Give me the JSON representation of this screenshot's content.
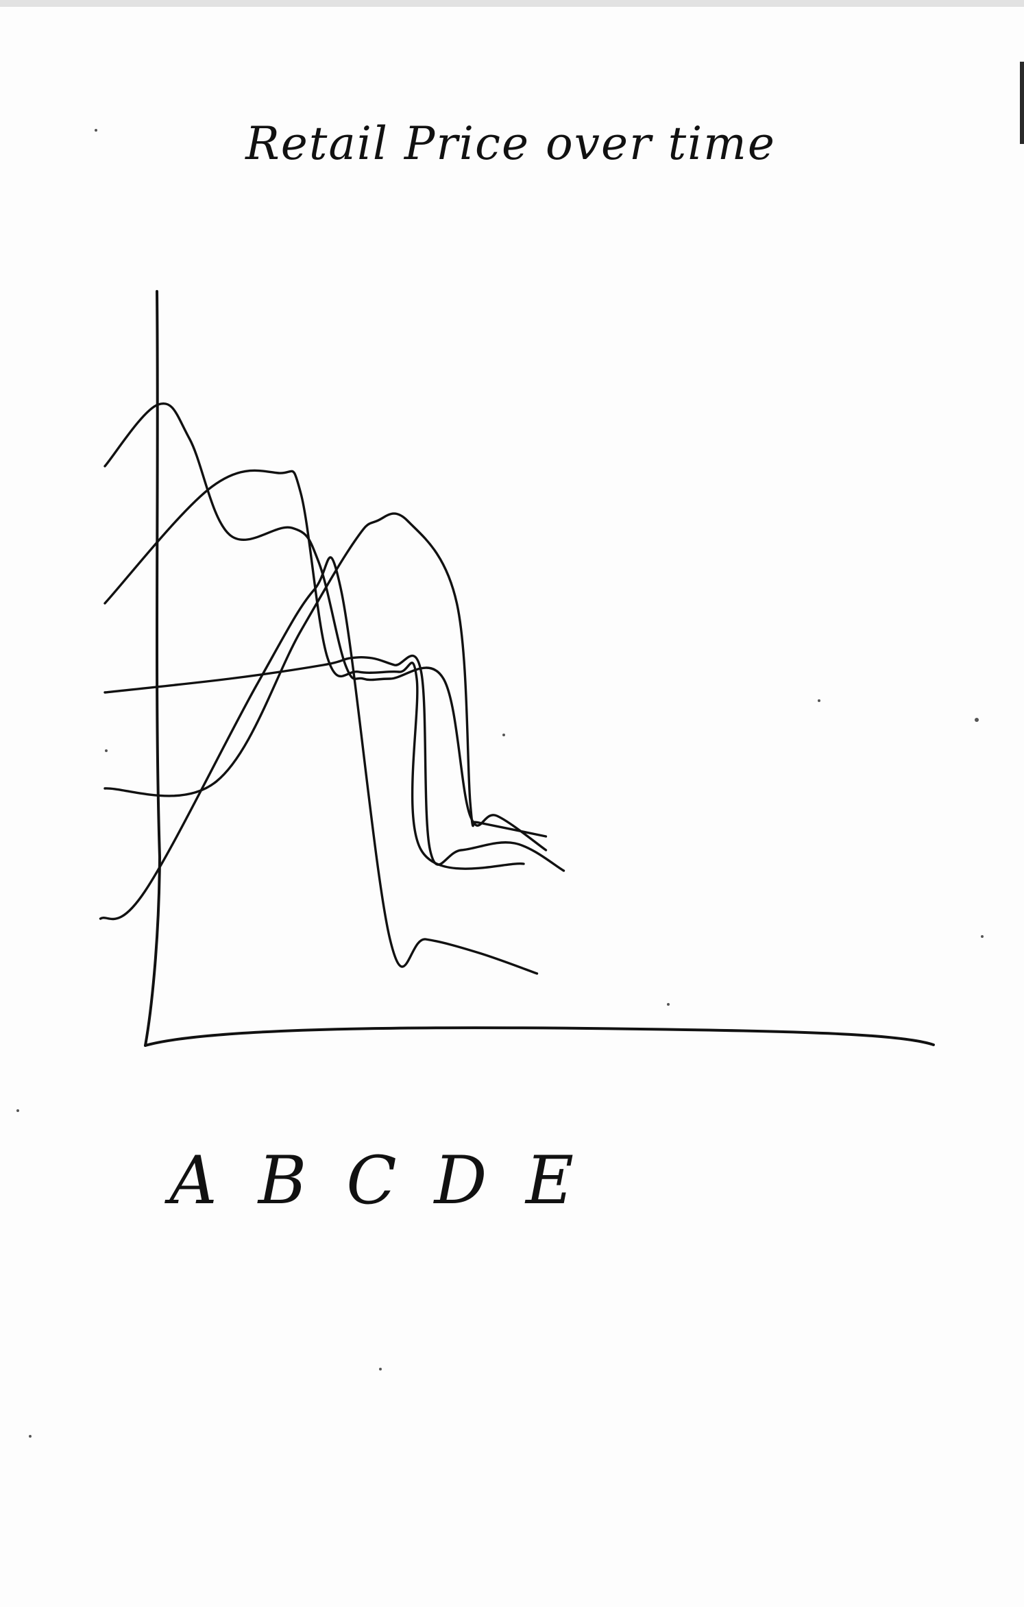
{
  "chart_data": {
    "type": "line",
    "title": "Retail Price over time",
    "categories": [
      "A",
      "B",
      "C",
      "D",
      "E"
    ],
    "xlabel": "",
    "ylabel": "",
    "ylim": [
      0,
      100
    ],
    "grid": false,
    "legend": "none",
    "line_color": "#111111",
    "series": [
      {
        "x": [
          0.1,
          0.7,
          1.05,
          1.5,
          2.2,
          2.5,
          2.8,
          3.0,
          3.3,
          3.9,
          4.2,
          4.5,
          5.05
        ],
        "values": [
          82,
          91,
          86,
          72,
          73,
          68,
          53,
          51,
          51,
          51,
          31,
          31,
          26
        ]
      },
      {
        "x": [
          0.1,
          1.3,
          2.05,
          2.3,
          2.6,
          2.95,
          3.4,
          3.6,
          3.65,
          4.8
        ],
        "values": [
          62,
          79,
          81,
          78,
          54,
          52,
          52,
          51,
          26,
          24
        ]
      },
      {
        "x": [
          0.1,
          1.5,
          2.55,
          2.85,
          3.1,
          3.35,
          3.65,
          3.75,
          4.1,
          4.7,
          5.25
        ],
        "values": [
          49,
          51,
          53,
          54,
          54,
          53,
          52,
          26,
          26,
          27,
          23
        ]
      },
      {
        "x": [
          0.1,
          1.35,
          2.3,
          2.9,
          3.15,
          3.5,
          4.05,
          4.2,
          4.25,
          4.3,
          5.05
        ],
        "values": [
          35,
          36,
          58,
          71,
          74,
          74,
          62,
          33,
          30,
          30,
          28
        ]
      },
      {
        "x": [
          0.05,
          0.55,
          1.8,
          2.45,
          2.75,
          3.3,
          3.7,
          4.3,
          4.95
        ],
        "values": [
          16,
          20,
          50,
          64,
          64,
          13,
          13,
          11,
          8
        ]
      }
    ]
  }
}
